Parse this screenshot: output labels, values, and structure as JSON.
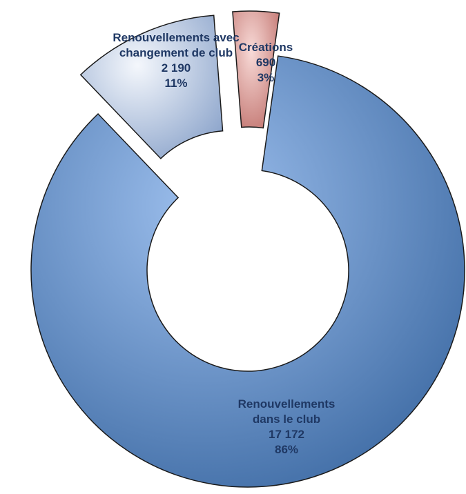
{
  "chart_data": {
    "type": "donut",
    "categories": [
      "Renouvellements dans le club",
      "Renouvellements avec changement de club",
      "Créations"
    ],
    "values": [
      17172,
      2190,
      690
    ],
    "value_labels": [
      "17 172",
      "2 190",
      "690"
    ],
    "percent_labels": [
      "86%",
      "11%",
      "3%"
    ],
    "colors": [
      "#4f81bd",
      "#c6d3e8",
      "#e3a29d"
    ]
  }
}
